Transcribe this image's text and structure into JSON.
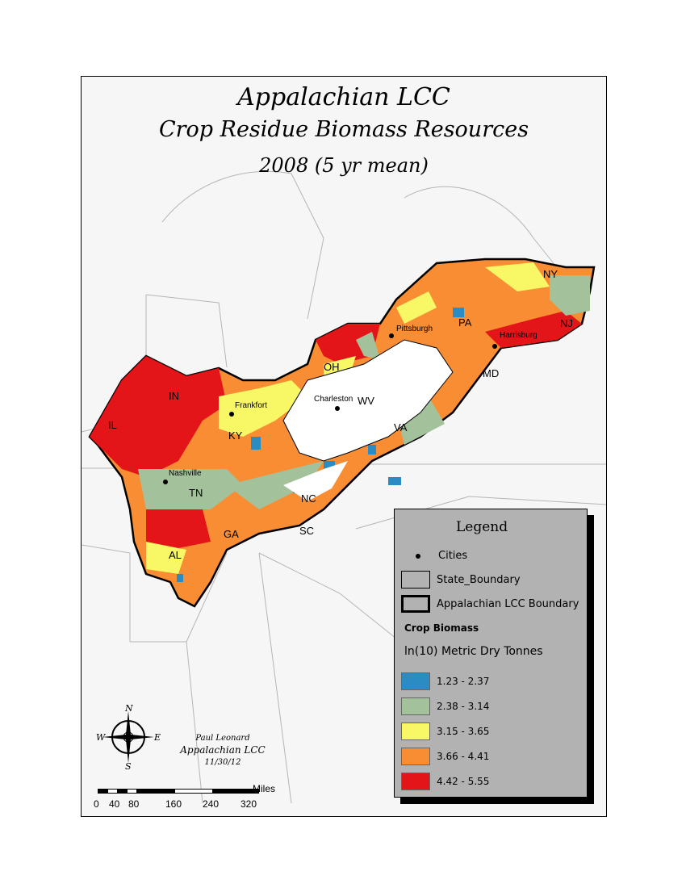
{
  "title": {
    "line1": "Appalachian LCC",
    "line2": "Crop Residue Biomass Resources",
    "line3": "2008 (5 yr mean)"
  },
  "states": [
    "IN",
    "IL",
    "KY",
    "OH",
    "WV",
    "PA",
    "NY",
    "NJ",
    "MD",
    "VA",
    "NC",
    "SC",
    "TN",
    "GA",
    "AL"
  ],
  "cities": [
    "Pittsburgh",
    "Harrisburg",
    "Frankfort",
    "Charleston",
    "Nashville"
  ],
  "legend": {
    "title": "Legend",
    "cities": "Cities",
    "state_boundary": "State_Boundary",
    "lcc_boundary": "Appalachian LCC Boundary",
    "layer": "Crop Biomass",
    "units": "ln(10) Metric Dry Tonnes",
    "classes": [
      {
        "label": "1.23 - 2.37",
        "color": "#2b8cc4"
      },
      {
        "label": "2.38 - 3.14",
        "color": "#a3c29b"
      },
      {
        "label": "3.15 - 3.65",
        "color": "#f8f866"
      },
      {
        "label": "3.66 - 4.41",
        "color": "#f98d33"
      },
      {
        "label": "4.42 - 5.55",
        "color": "#e41519"
      }
    ]
  },
  "credit": {
    "author": "Paul Leonard",
    "org": "Appalachian LCC",
    "date": "11/30/12"
  },
  "compass": {
    "n": "N",
    "s": "S",
    "e": "E",
    "w": "W"
  },
  "scalebar": {
    "unit": "Miles",
    "ticks": [
      "0",
      "40",
      "80",
      "160",
      "240",
      "320"
    ]
  }
}
